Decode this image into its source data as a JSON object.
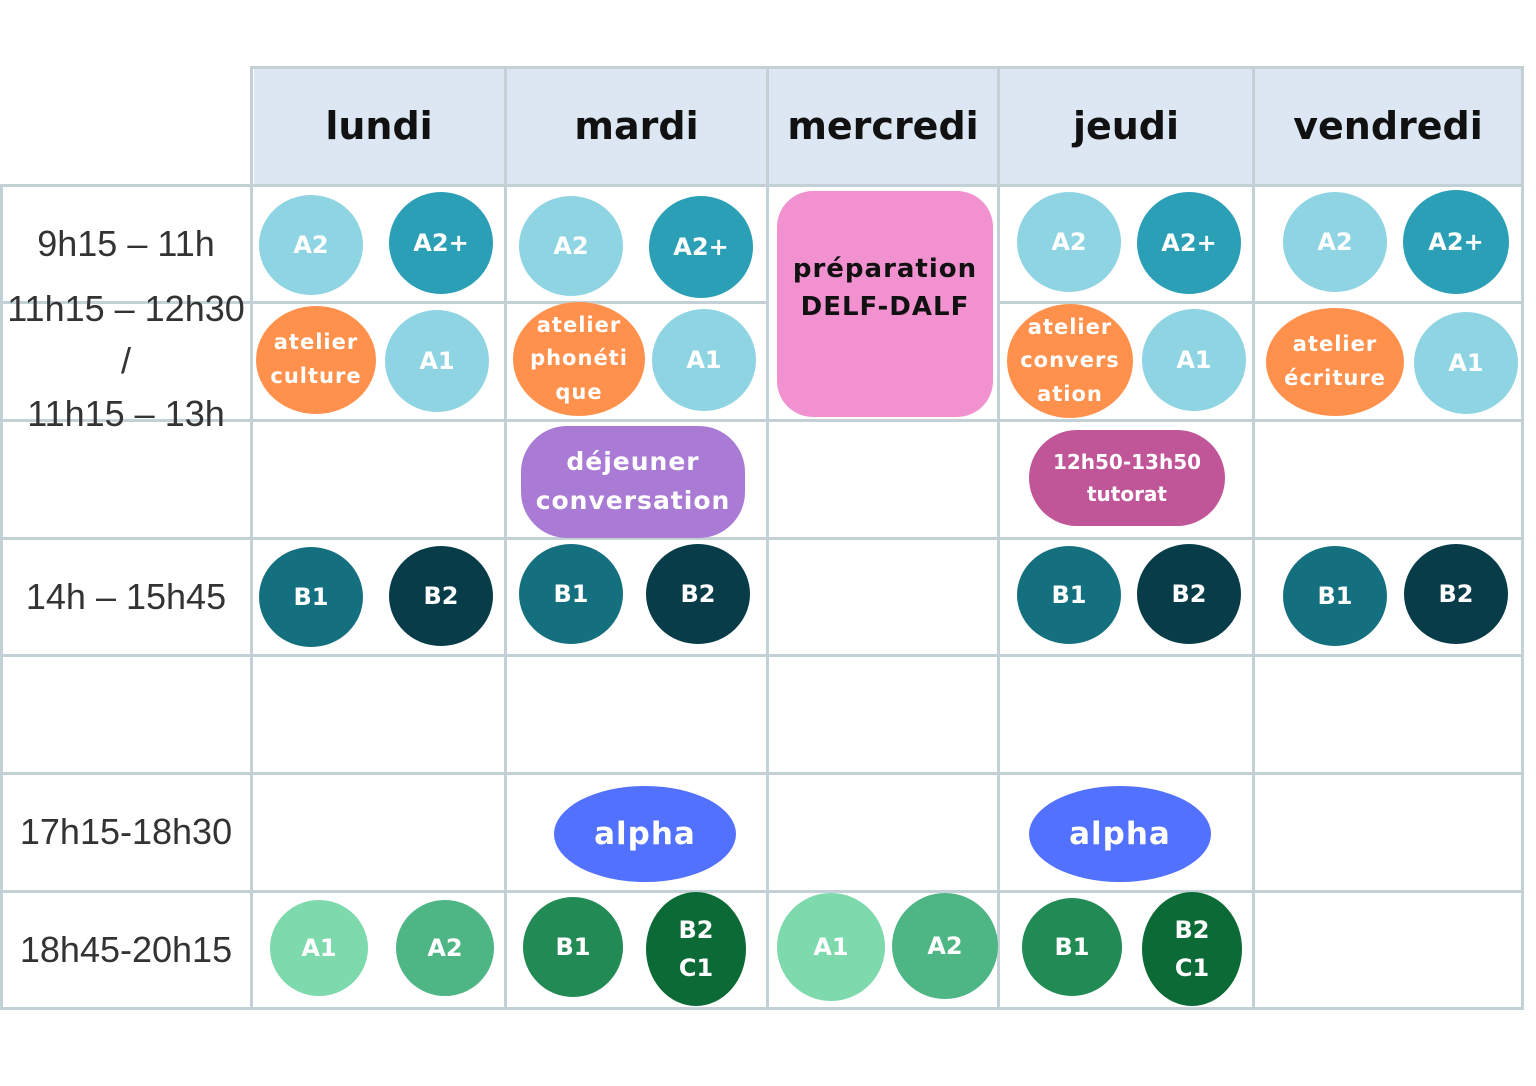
{
  "days": [
    "lundi",
    "mardi",
    "mercredi",
    "jeudi",
    "vendredi"
  ],
  "time_slots": [
    [
      "9h15 – 11h"
    ],
    [
      "11h15 – 12h30 /",
      "11h15 – 13h"
    ],
    [
      ""
    ],
    [
      "14h – 15h45"
    ],
    [
      ""
    ],
    [
      "17h15-18h30"
    ],
    [
      "18h45-20h15"
    ]
  ],
  "colors": {
    "a2": "#8ed4e2",
    "a2plus": "#2a9fb5",
    "a1_morning": "#8ed4e2",
    "atelier": "#ff914d",
    "delf": "#f291d0",
    "dejeuner": "#a97bd5",
    "tutorat": "#c05598",
    "b1_afternoon": "#14707f",
    "b2_afternoon": "#073c48",
    "alpha": "#5271ff",
    "a1_evening": "#7ed9ad",
    "a2_evening": "#4eb584",
    "b1_evening": "#228a55",
    "b2c1_evening": "#0b6a35",
    "header_bg": "#dde7f3",
    "grid_line": "#c3d1d6"
  },
  "badges": {
    "lundi_a2": "A2",
    "lundi_a2plus": "A2+",
    "lundi_atelier": "atelier\nculture",
    "lundi_a1": "A1",
    "lundi_b1": "B1",
    "lundi_b2": "B2",
    "lundi_eve_a1": "A1",
    "lundi_eve_a2": "A2",
    "mardi_a2": "A2",
    "mardi_a2plus": "A2+",
    "mardi_atelier": "atelier\nphonéti\nque",
    "mardi_a1": "A1",
    "mardi_dejeuner": "déjeuner\nconversation",
    "mardi_b1": "B1",
    "mardi_b2": "B2",
    "mardi_alpha": "alpha",
    "mardi_eve_b1": "B1",
    "mardi_eve_b2c1": "B2\nC1",
    "mercredi_delf": "préparation\nDELF-DALF",
    "mercredi_eve_a1": "A1",
    "mercredi_eve_a2": "A2",
    "jeudi_a2": "A2",
    "jeudi_a2plus": "A2+",
    "jeudi_atelier": "atelier\nconvers\nation",
    "jeudi_a1": "A1",
    "jeudi_tutorat": "12h50-13h50\ntutorat",
    "jeudi_b1": "B1",
    "jeudi_b2": "B2",
    "jeudi_alpha": "alpha",
    "jeudi_eve_b1": "B1",
    "jeudi_eve_b2c1": "B2\nC1",
    "vendredi_a2": "A2",
    "vendredi_a2plus": "A2+",
    "vendredi_atelier": "atelier\nécriture",
    "vendredi_a1": "A1",
    "vendredi_b1": "B1",
    "vendredi_b2": "B2"
  }
}
